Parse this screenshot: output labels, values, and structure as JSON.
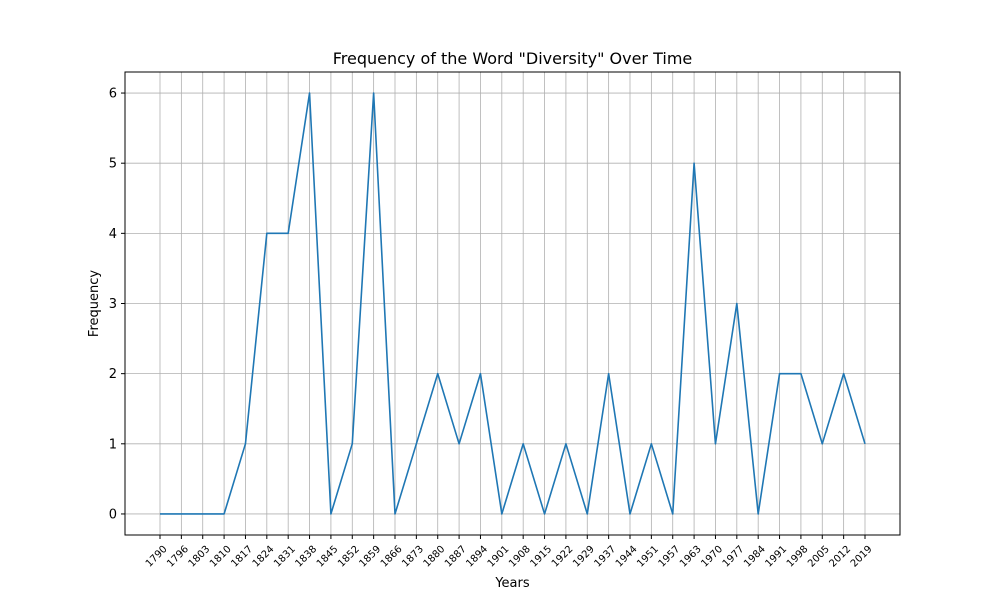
{
  "chart_data": {
    "type": "line",
    "title": "Frequency of the Word \"Diversity\" Over Time",
    "xlabel": "Years",
    "ylabel": "Frequency",
    "x": [
      "1790",
      "1796",
      "1803",
      "1810",
      "1817",
      "1824",
      "1831",
      "1838",
      "1845",
      "1852",
      "1859",
      "1866",
      "1873",
      "1880",
      "1887",
      "1894",
      "1901",
      "1908",
      "1915",
      "1922",
      "1929",
      "1937",
      "1944",
      "1951",
      "1957",
      "1963",
      "1970",
      "1977",
      "1984",
      "1991",
      "1998",
      "2005",
      "2012",
      "2019"
    ],
    "series": [
      {
        "values": [
          0,
          0,
          0,
          0,
          1,
          4,
          4,
          6,
          0,
          1,
          6,
          0,
          1,
          2,
          1,
          2,
          0,
          1,
          0,
          1,
          0,
          2,
          0,
          1,
          0,
          5,
          1,
          3,
          0,
          2,
          2,
          1,
          2,
          1
        ]
      }
    ],
    "yticks": [
      0,
      1,
      2,
      3,
      4,
      5,
      6
    ],
    "ylim": [
      -0.3,
      6.3
    ],
    "grid": true,
    "legend": "none",
    "line_color": "#1f77b4"
  }
}
